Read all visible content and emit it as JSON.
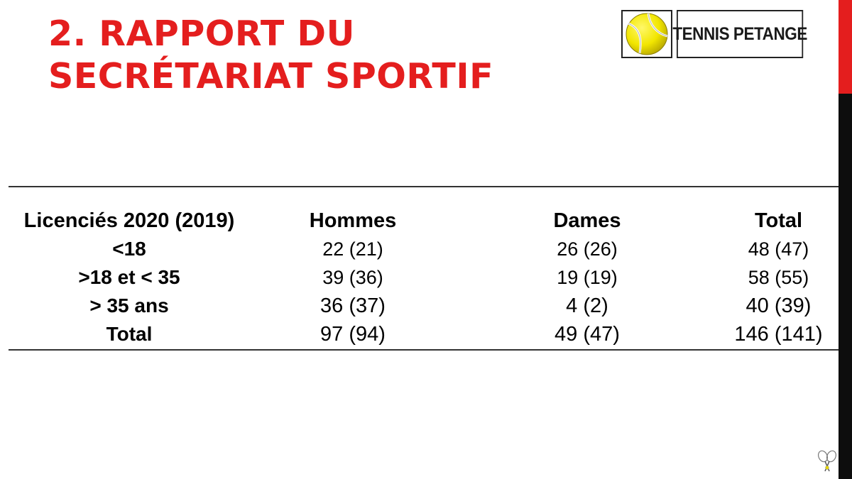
{
  "title": {
    "line1": "2. RAPPORT DU",
    "line2": "SECRÉTARIAT SPORTIF"
  },
  "logo": {
    "name": "TENNIS PETANGE",
    "ball_icon": "tennis-ball-icon",
    "ball_color": "#f2e600"
  },
  "colors": {
    "accent": "#e41e1e",
    "sidebar_dark": "#0d0d0d"
  },
  "table": {
    "headers": [
      "Licenciés 2020 (2019)",
      "Hommes",
      "Dames",
      "Total"
    ],
    "rows": [
      {
        "label": "<18",
        "hommes": "22 (21)",
        "dames": "26 (26)",
        "total": "48 (47)"
      },
      {
        "label": ">18 et < 35",
        "hommes": "39 (36)",
        "dames": "19 (19)",
        "total": "58 (55)"
      },
      {
        "label": "> 35 ans",
        "hommes": "36 (37)",
        "dames": "4 (2)",
        "total": "40 (39)"
      },
      {
        "label": "Total",
        "hommes": "97 (94)",
        "dames": "49 (47)",
        "total": "146 (141)"
      }
    ]
  },
  "corner_icon": "tennis-rackets-icon"
}
